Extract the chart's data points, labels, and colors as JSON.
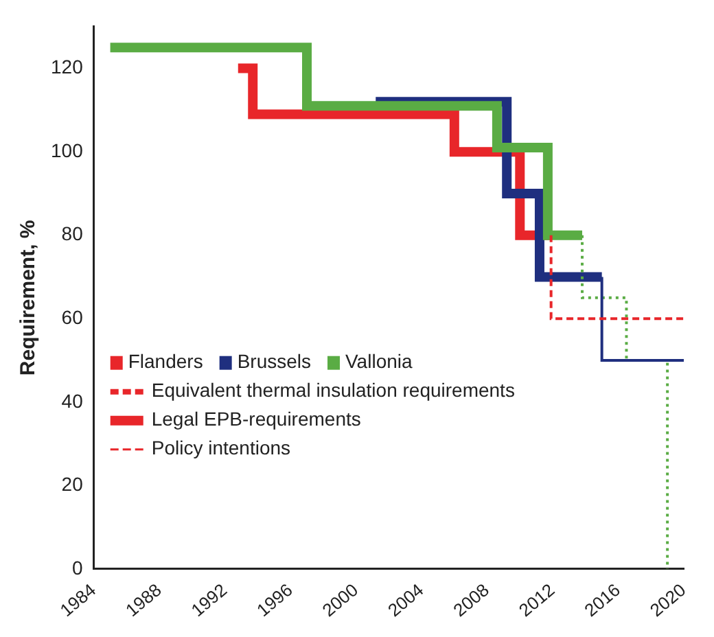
{
  "chart_data": {
    "type": "step",
    "ylabel": "Requirement, %",
    "xlim": [
      1984,
      2020
    ],
    "xticks": [
      1984,
      1988,
      1992,
      1996,
      2000,
      2004,
      2008,
      2012,
      2016,
      2020
    ],
    "ylim": [
      0,
      130
    ],
    "yticks": [
      0,
      20,
      40,
      60,
      80,
      100,
      120
    ],
    "grid": false,
    "legend": "left",
    "series": [
      {
        "name": "Vallonia",
        "color": "#5aac44",
        "x": [
          1985,
          1997,
          2008.6,
          2011.7,
          2013.8
        ],
        "values": [
          125,
          111,
          101,
          80,
          80
        ]
      },
      {
        "name": "Brussels",
        "color": "#1f2f7f",
        "x": [
          2001.2,
          2009.2,
          2011.2,
          2015
        ],
        "values": [
          112,
          90,
          70,
          70
        ]
      },
      {
        "name": "Flanders",
        "color": "#e8262a",
        "x": [
          1992.8,
          1993.7,
          2006,
          2010,
          2011.9
        ],
        "values": [
          120,
          109,
          100,
          80,
          80
        ]
      },
      {
        "color": "#e8262a",
        "line_style": "dashed",
        "x": [
          2011.9,
          2011.9,
          2020
        ],
        "values": [
          80,
          60,
          60
        ]
      },
      {
        "color": "#1f2f7f",
        "line_style": "solid",
        "x": [
          2015,
          2015,
          2020
        ],
        "values": [
          70,
          50,
          50
        ]
      },
      {
        "color": "#5aac44",
        "line_style": "dotted",
        "x": [
          2013.8,
          2013.8,
          2016.5,
          2019
        ],
        "values": [
          80,
          65,
          50,
          0
        ]
      }
    ],
    "annotations": [
      "Equivalent thermal insulation requirements",
      "Legal EPB-requirements",
      "Policy intentions"
    ]
  }
}
